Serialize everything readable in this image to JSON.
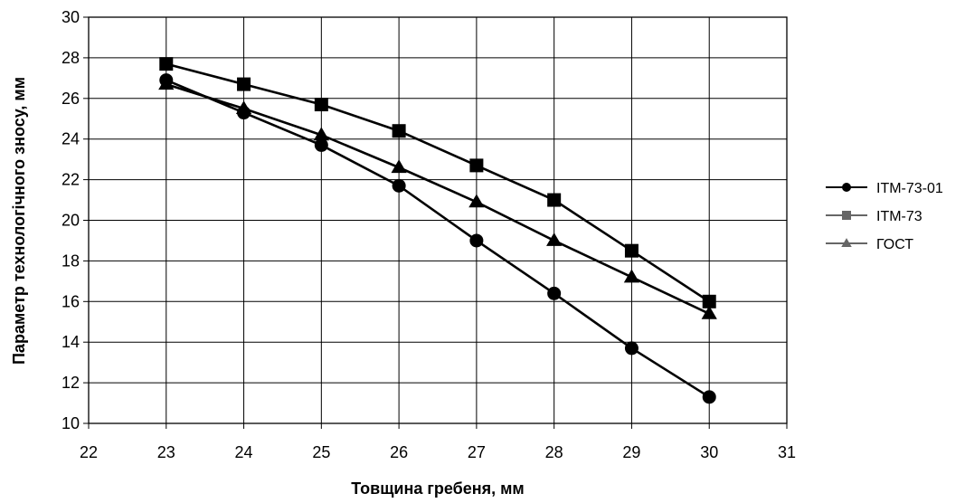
{
  "chart_data": {
    "type": "line",
    "title": "",
    "xlabel": "Товщина гребеня, мм",
    "ylabel": "Параметр технологічного зносу, мм",
    "xlim": [
      22,
      31
    ],
    "ylim": [
      10,
      30
    ],
    "xticks": [
      "22",
      "23",
      "24",
      "25",
      "26",
      "27",
      "28",
      "29",
      "30",
      "31"
    ],
    "yticks": [
      "10",
      "12",
      "14",
      "16",
      "18",
      "20",
      "22",
      "24",
      "26",
      "28",
      "30"
    ],
    "grid": true,
    "legend_position": "right",
    "x": [
      23,
      24,
      25,
      26,
      27,
      28,
      29,
      30
    ],
    "series": [
      {
        "name": "ІТМ-73-01",
        "marker": "circle",
        "color": "#000000",
        "values": [
          26.9,
          25.3,
          23.7,
          21.7,
          19.0,
          16.4,
          13.7,
          11.3
        ]
      },
      {
        "name": "ІТМ-73",
        "marker": "square",
        "color": "#000000",
        "values": [
          27.7,
          26.7,
          25.7,
          24.4,
          22.7,
          21.0,
          18.5,
          16.0
        ]
      },
      {
        "name": "ГОСТ",
        "marker": "triangle",
        "color": "#000000",
        "values": [
          26.7,
          25.5,
          24.2,
          22.6,
          20.9,
          19.0,
          17.2,
          15.4
        ]
      }
    ]
  }
}
